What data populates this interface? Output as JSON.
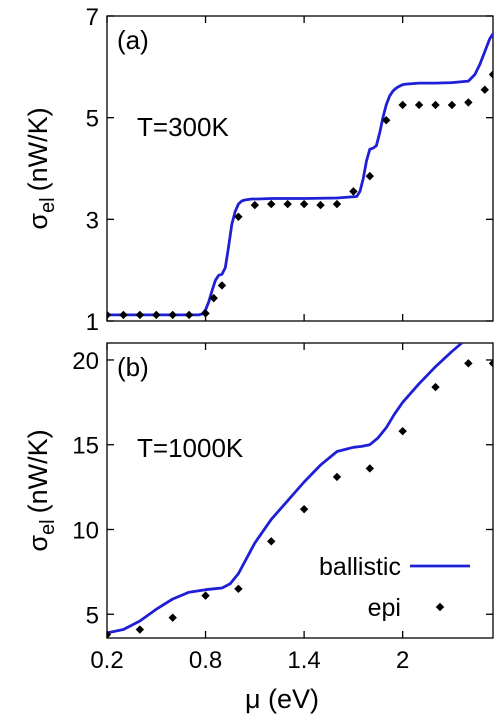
{
  "chart_data": [
    {
      "type": "line",
      "panel_label": "(a)",
      "annotation": "T=300K",
      "ylabel_main": "σ",
      "ylabel_sub": "el",
      "ylabel_unit": "(nW/K)",
      "xlim": [
        0.2,
        2.55
      ],
      "ylim": [
        1,
        7
      ],
      "xticks": [
        "0.2",
        "0.8",
        "1.4",
        "2"
      ],
      "xtick_values": [
        0.2,
        0.8,
        1.4,
        2.0
      ],
      "yticks": [
        "1",
        "3",
        "5",
        "7"
      ],
      "ytick_values": [
        1,
        3,
        5,
        7
      ],
      "grid": false,
      "series": [
        {
          "name": "ballistic",
          "style": "line",
          "color": "#1f1fd6",
          "x": [
            0.2,
            0.76,
            0.78,
            0.8,
            0.82,
            0.84,
            0.86,
            0.88,
            0.9,
            0.92,
            0.94,
            0.96,
            0.98,
            1.0,
            1.02,
            1.04,
            1.06,
            1.08,
            1.12,
            1.2,
            1.4,
            1.6,
            1.72,
            1.74,
            1.76,
            1.78,
            1.8,
            1.82,
            1.84,
            1.86,
            1.88,
            1.9,
            1.92,
            1.94,
            1.96,
            1.98,
            2.0,
            2.02,
            2.06,
            2.1,
            2.2,
            2.3,
            2.4,
            2.44,
            2.47,
            2.5,
            2.53,
            2.55
          ],
          "y": [
            1.12,
            1.12,
            1.14,
            1.22,
            1.38,
            1.6,
            1.8,
            1.9,
            1.92,
            2.05,
            2.45,
            2.9,
            3.15,
            3.3,
            3.36,
            3.38,
            3.39,
            3.4,
            3.4,
            3.41,
            3.41,
            3.42,
            3.45,
            3.55,
            3.8,
            4.15,
            4.38,
            4.4,
            4.45,
            4.7,
            5.0,
            5.25,
            5.42,
            5.52,
            5.58,
            5.62,
            5.65,
            5.66,
            5.67,
            5.68,
            5.68,
            5.69,
            5.72,
            5.85,
            6.05,
            6.3,
            6.55,
            6.65
          ]
        },
        {
          "name": "epi",
          "style": "points",
          "color": "#000000",
          "x": [
            0.2,
            0.3,
            0.4,
            0.5,
            0.6,
            0.7,
            0.8,
            0.85,
            0.9,
            1.0,
            1.1,
            1.2,
            1.3,
            1.4,
            1.5,
            1.6,
            1.7,
            1.8,
            1.9,
            2.0,
            2.1,
            2.2,
            2.3,
            2.4,
            2.5,
            2.55
          ],
          "y": [
            1.12,
            1.12,
            1.12,
            1.12,
            1.12,
            1.12,
            1.15,
            1.45,
            1.7,
            3.05,
            3.28,
            3.3,
            3.3,
            3.3,
            3.28,
            3.3,
            3.55,
            3.85,
            4.95,
            5.25,
            5.25,
            5.25,
            5.25,
            5.3,
            5.55,
            5.85
          ]
        }
      ]
    },
    {
      "type": "line",
      "panel_label": "(b)",
      "annotation": "T=1000K",
      "ylabel_main": "σ",
      "ylabel_sub": "el",
      "ylabel_unit": "(nW/K)",
      "xlim": [
        0.2,
        2.55
      ],
      "ylim": [
        3.6,
        21
      ],
      "xlabel": "μ (eV)",
      "xticks": [
        "0.2",
        "0.8",
        "1.4",
        "2"
      ],
      "xtick_values": [
        0.2,
        0.8,
        1.4,
        2.0
      ],
      "yticks": [
        "5",
        "10",
        "15",
        "20"
      ],
      "ytick_values": [
        5,
        10,
        15,
        20
      ],
      "grid": false,
      "legend_position": "bottom-right",
      "series": [
        {
          "name": "ballistic",
          "style": "line",
          "color": "#1f1fd6",
          "x": [
            0.2,
            0.3,
            0.4,
            0.5,
            0.6,
            0.7,
            0.8,
            0.85,
            0.9,
            0.95,
            1.0,
            1.05,
            1.1,
            1.2,
            1.3,
            1.4,
            1.5,
            1.6,
            1.7,
            1.75,
            1.8,
            1.85,
            1.9,
            1.95,
            2.0,
            2.1,
            2.2,
            2.3,
            2.36
          ],
          "y": [
            3.9,
            4.1,
            4.6,
            5.3,
            5.9,
            6.3,
            6.45,
            6.5,
            6.55,
            6.8,
            7.4,
            8.3,
            9.2,
            10.6,
            11.7,
            12.8,
            13.8,
            14.6,
            14.85,
            14.9,
            15.0,
            15.4,
            16.0,
            16.8,
            17.5,
            18.6,
            19.6,
            20.5,
            21.0
          ]
        },
        {
          "name": "epi",
          "style": "points",
          "color": "#000000",
          "x": [
            0.2,
            0.4,
            0.6,
            0.8,
            1.0,
            1.2,
            1.4,
            1.6,
            1.8,
            2.0,
            2.2,
            2.4,
            2.55
          ],
          "y": [
            3.8,
            4.1,
            4.8,
            6.1,
            6.5,
            9.3,
            11.2,
            13.1,
            13.6,
            15.8,
            18.4,
            19.8,
            19.8
          ]
        }
      ]
    }
  ]
}
